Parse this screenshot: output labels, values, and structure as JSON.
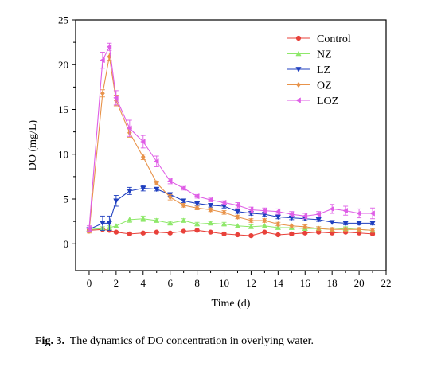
{
  "caption": {
    "label": "Fig. 3.",
    "text": "The dynamics of DO concentration in overlying water."
  },
  "chart_data": {
    "type": "line",
    "xlabel": "Time (d)",
    "ylabel": "DO (mg/L)",
    "xlim": [
      -1,
      22
    ],
    "ylim": [
      -3,
      25
    ],
    "xticks": [
      "0",
      "2",
      "4",
      "6",
      "8",
      "10",
      "12",
      "14",
      "16",
      "18",
      "20",
      "22"
    ],
    "yticks": [
      "0",
      "5",
      "10",
      "15",
      "20",
      "25"
    ],
    "legend_position": "top-right",
    "x": [
      0,
      1,
      1.5,
      2,
      3,
      4,
      5,
      6,
      7,
      8,
      9,
      10,
      11,
      12,
      13,
      14,
      15,
      16,
      17,
      18,
      19,
      20,
      21
    ],
    "series": [
      {
        "name": "Control",
        "color": "#e8413a",
        "marker": "circle",
        "values": [
          1.5,
          1.6,
          1.5,
          1.3,
          1.1,
          1.2,
          1.3,
          1.2,
          1.4,
          1.5,
          1.3,
          1.1,
          1.0,
          0.9,
          1.3,
          1.0,
          1.1,
          1.2,
          1.3,
          1.2,
          1.3,
          1.2,
          1.1
        ],
        "errors": [
          0.2,
          0.1,
          0.1,
          0.1,
          0.1,
          0.1,
          0.1,
          0.1,
          0.1,
          0.1,
          0.1,
          0.1,
          0.1,
          0.1,
          0.1,
          0.1,
          0.1,
          0.1,
          0.1,
          0.1,
          0.1,
          0.1,
          0.1
        ]
      },
      {
        "name": "NZ",
        "color": "#8ee86a",
        "marker": "triangle-up",
        "values": [
          1.6,
          1.7,
          1.8,
          2.0,
          2.7,
          2.8,
          2.6,
          2.3,
          2.6,
          2.2,
          2.3,
          2.2,
          2.0,
          1.9,
          2.0,
          1.8,
          1.8,
          1.7,
          1.7,
          1.6,
          1.7,
          1.6,
          1.5
        ],
        "errors": [
          0.2,
          0.2,
          0.2,
          0.2,
          0.3,
          0.3,
          0.2,
          0.2,
          0.2,
          0.2,
          0.2,
          0.2,
          0.2,
          0.2,
          0.2,
          0.2,
          0.2,
          0.2,
          0.2,
          0.2,
          0.2,
          0.2,
          0.2
        ]
      },
      {
        "name": "LZ",
        "color": "#1f3fbf",
        "marker": "triangle-down",
        "values": [
          1.6,
          2.3,
          2.3,
          4.8,
          5.9,
          6.2,
          6.1,
          5.5,
          4.8,
          4.5,
          4.3,
          4.2,
          3.6,
          3.4,
          3.3,
          3.0,
          2.9,
          2.8,
          2.7,
          2.4,
          2.3,
          2.3,
          2.3
        ],
        "errors": [
          0.2,
          0.8,
          0.8,
          0.6,
          0.4,
          0.3,
          0.2,
          0.2,
          0.2,
          0.2,
          0.2,
          0.2,
          0.2,
          0.2,
          0.2,
          0.2,
          0.2,
          0.2,
          0.2,
          0.2,
          0.2,
          0.2,
          0.2
        ]
      },
      {
        "name": "OZ",
        "color": "#e8934a",
        "marker": "diamond",
        "values": [
          1.4,
          16.8,
          20.9,
          16.0,
          12.4,
          9.7,
          6.8,
          5.2,
          4.3,
          4.0,
          3.8,
          3.5,
          3.0,
          2.6,
          2.6,
          2.2,
          2.0,
          1.9,
          1.7,
          1.6,
          1.6,
          1.6,
          1.5
        ],
        "errors": [
          0.2,
          0.4,
          0.4,
          0.6,
          0.5,
          0.3,
          0.2,
          0.3,
          0.2,
          0.2,
          0.2,
          0.2,
          0.2,
          0.2,
          0.2,
          0.2,
          0.2,
          0.2,
          0.2,
          0.2,
          0.2,
          0.2,
          0.2
        ]
      },
      {
        "name": "LOZ",
        "color": "#df5ee6",
        "marker": "triangle-left",
        "values": [
          1.7,
          20.5,
          22.0,
          16.3,
          12.9,
          11.4,
          9.2,
          7.0,
          6.2,
          5.3,
          4.9,
          4.6,
          4.3,
          3.8,
          3.7,
          3.6,
          3.3,
          3.1,
          3.3,
          3.9,
          3.7,
          3.4,
          3.4
        ],
        "errors": [
          0.3,
          0.9,
          0.4,
          0.8,
          0.9,
          0.7,
          0.6,
          0.3,
          0.2,
          0.2,
          0.2,
          0.2,
          0.3,
          0.3,
          0.3,
          0.3,
          0.3,
          0.3,
          0.3,
          0.5,
          0.5,
          0.5,
          0.6
        ]
      }
    ]
  }
}
